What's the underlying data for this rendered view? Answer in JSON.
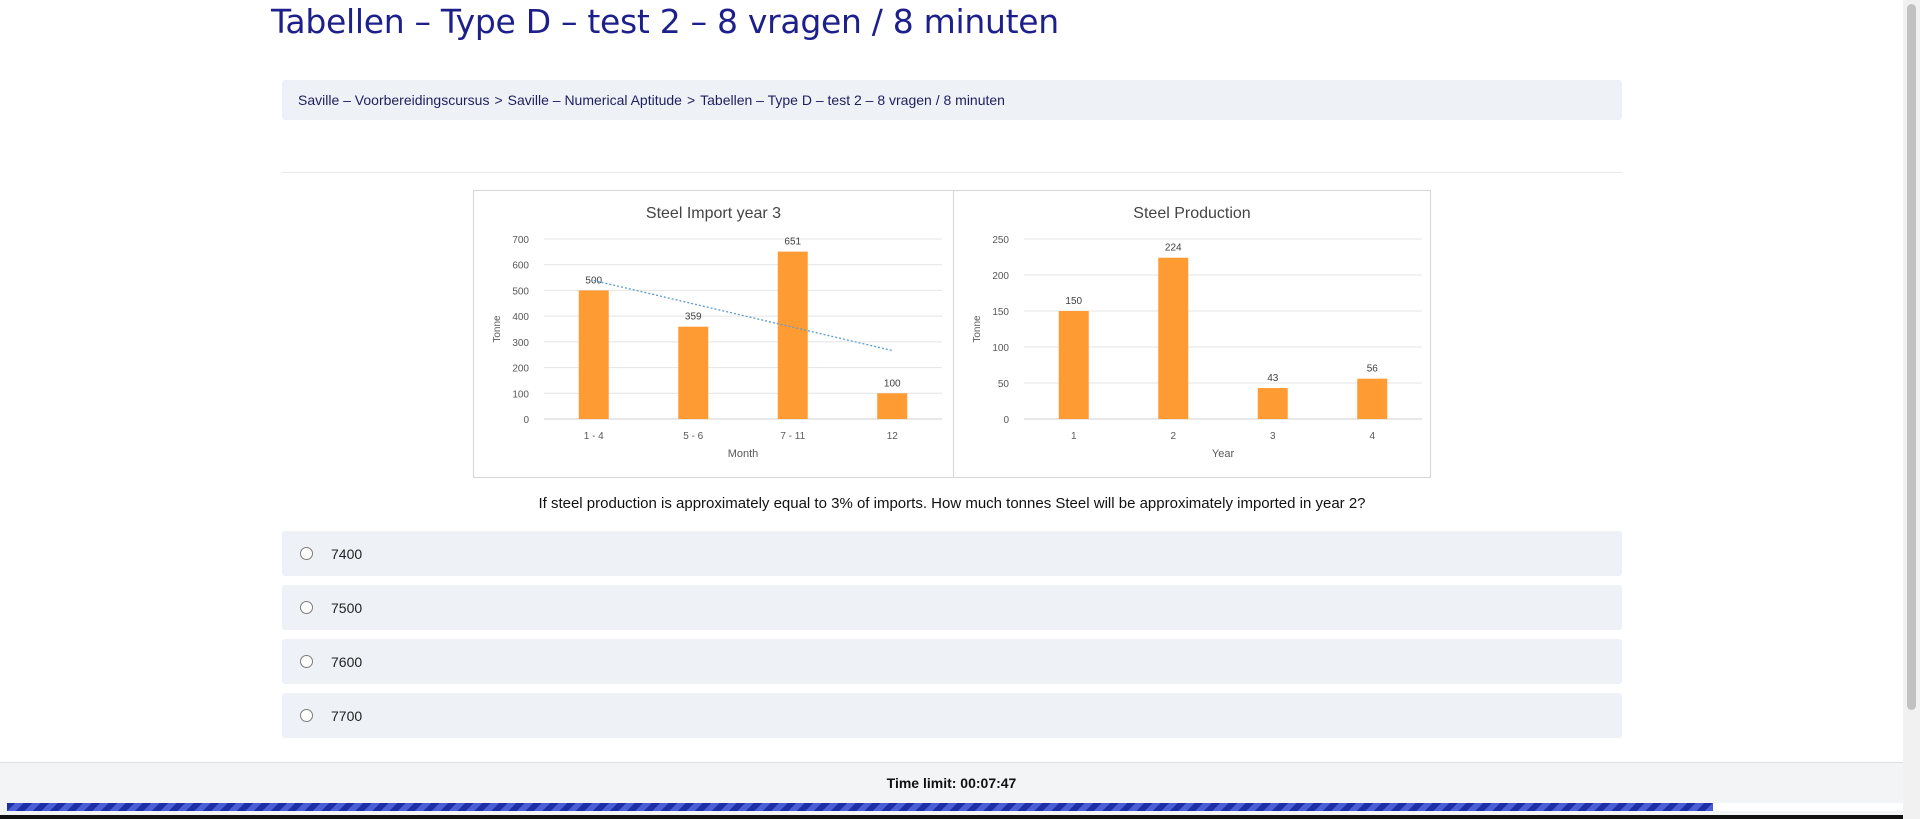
{
  "page": {
    "title": "Tabellen – Type D – test 2 – 8 vragen / 8 minuten"
  },
  "breadcrumb": {
    "items": [
      "Saville – Voorbereidingscursus",
      "Saville – Numerical Aptitude",
      "Tabellen – Type D – test 2 – 8 vragen / 8 minuten"
    ],
    "separator": ">"
  },
  "chart_data": [
    {
      "type": "bar",
      "title": "Steel Import year 3",
      "xlabel": "Month",
      "ylabel": "Tonne",
      "categories": [
        "1 - 4",
        "5 - 6",
        "7 - 11",
        "12"
      ],
      "values": [
        500,
        359,
        651,
        100
      ],
      "ylim": [
        0,
        700
      ],
      "yticks": [
        0,
        100,
        200,
        300,
        400,
        500,
        600,
        700
      ],
      "grid": true,
      "trendline": true,
      "bar_color": "#ff9b33"
    },
    {
      "type": "bar",
      "title": "Steel Production",
      "xlabel": "Year",
      "ylabel": "Tonne",
      "categories": [
        "1",
        "2",
        "3",
        "4"
      ],
      "values": [
        150,
        224,
        43,
        56
      ],
      "ylim": [
        0,
        250
      ],
      "yticks": [
        0,
        50,
        100,
        150,
        200,
        250
      ],
      "grid": true,
      "trendline": false,
      "bar_color": "#ff9b33"
    }
  ],
  "question": {
    "text": "If steel production is approximately equal to 3% of imports. How much tonnes Steel will be approximately imported in year 2?",
    "options": [
      {
        "label": "7400",
        "selected": false
      },
      {
        "label": "7500",
        "selected": false
      },
      {
        "label": "7600",
        "selected": false
      },
      {
        "label": "7700",
        "selected": false
      }
    ]
  },
  "timer": {
    "text": "Time limit: 00:07:47",
    "progress_fraction": 0.9
  },
  "colors": {
    "title": "#1d1f8a",
    "bar": "#ff9b33",
    "panel_bg": "#eef2f7",
    "progress": "#1d2ea6"
  }
}
